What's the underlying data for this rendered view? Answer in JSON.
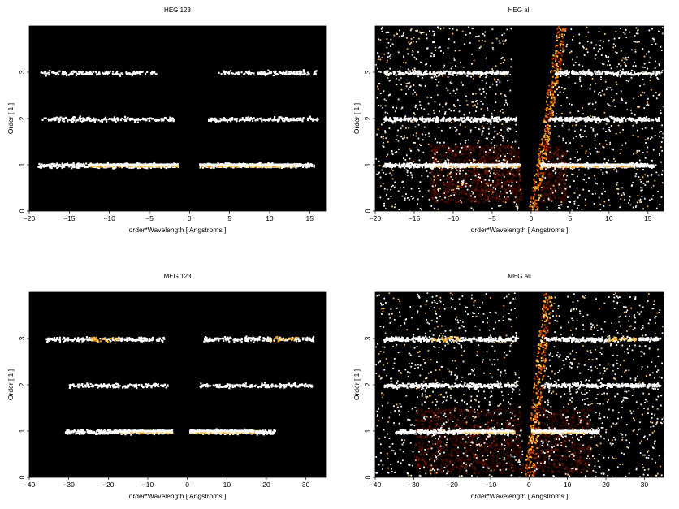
{
  "chart_data": [
    {
      "type": "heatmap",
      "title": "HEG 123",
      "xlabel": "order*Wavelength [ Angstroms ]",
      "ylabel": "Order [ 1 ]",
      "xlim": [
        -20,
        17
      ],
      "ylim": [
        0,
        4
      ],
      "xticks": [
        -20,
        -15,
        -10,
        -5,
        0,
        5,
        10,
        15
      ],
      "yticks": [
        0,
        1,
        2,
        3
      ],
      "background": "#000000",
      "colormap": [
        "#000000",
        "#5a0d00",
        "#b32a00",
        "#ff8000",
        "#ffd060",
        "#ffffff"
      ],
      "bands": [
        {
          "order": 1,
          "x_start": -19,
          "x_end": -1.5,
          "core_start": -12.5,
          "core_end": -1.5,
          "intensity": "high",
          "density": 1.0
        },
        {
          "order": 1,
          "x_start": 1.2,
          "x_end": 15.5,
          "core_start": 1.2,
          "core_end": 13,
          "intensity": "high",
          "density": 1.0
        },
        {
          "order": 2,
          "x_start": -18.5,
          "x_end": -2,
          "intensity": "low",
          "density": 0.5
        },
        {
          "order": 2,
          "x_start": 2.2,
          "x_end": 16,
          "intensity": "low",
          "density": 0.55
        },
        {
          "order": 3,
          "x_start": -19,
          "x_end": -4,
          "intensity": "low",
          "density": 0.4
        },
        {
          "order": 3,
          "x_start": 3.5,
          "x_end": 16,
          "intensity": "low",
          "density": 0.45
        }
      ]
    },
    {
      "type": "heatmap",
      "title": "HEG all",
      "xlabel": "order*Wavelength [ Angstroms ]",
      "ylabel": "Order [ 1 ]",
      "xlim": [
        -20,
        17
      ],
      "ylim": [
        0,
        4
      ],
      "xticks": [
        -20,
        -15,
        -10,
        -5,
        0,
        5,
        10,
        15
      ],
      "yticks": [
        0,
        1,
        2,
        3
      ],
      "background": "#000000",
      "colormap": [
        "#000000",
        "#5a0d00",
        "#b32a00",
        "#ff8000",
        "#ffd060",
        "#ffffff"
      ],
      "bands": [
        {
          "order": 1,
          "x_start": -19,
          "x_end": -1.5,
          "core_start": -13,
          "core_end": -1.5,
          "intensity": "high",
          "density": 1.0
        },
        {
          "order": 1,
          "x_start": 1.2,
          "x_end": 16,
          "core_start": 1.2,
          "core_end": 13,
          "intensity": "high",
          "density": 1.0
        },
        {
          "order": 2,
          "x_start": -19,
          "x_end": -2,
          "intensity": "medium",
          "density": 0.7
        },
        {
          "order": 2,
          "x_start": 2,
          "x_end": 16.5,
          "intensity": "medium",
          "density": 0.7
        },
        {
          "order": 3,
          "x_start": -19,
          "x_end": -3,
          "intensity": "medium",
          "density": 0.6
        },
        {
          "order": 3,
          "x_start": 3,
          "x_end": 16.5,
          "intensity": "medium",
          "density": 0.6
        }
      ],
      "wedge": {
        "x_left_top": -2.5,
        "x_right_top": 4.5,
        "x_left_bottom": -1,
        "x_right_bottom": 0.8
      },
      "diffuse_block": {
        "x_start": -13,
        "x_end": 4.5,
        "y_start": 0.2,
        "y_end": 1.45
      }
    },
    {
      "type": "heatmap",
      "title": "MEG 123",
      "xlabel": "order*Wavelength [ Angstroms ]",
      "ylabel": "Order [ 1 ]",
      "xlim": [
        -40,
        35
      ],
      "ylim": [
        0,
        4
      ],
      "xticks": [
        -40,
        -30,
        -20,
        -10,
        0,
        10,
        20,
        30
      ],
      "yticks": [
        0,
        1,
        2,
        3
      ],
      "background": "#000000",
      "colormap": [
        "#000000",
        "#5a0d00",
        "#b32a00",
        "#ff8000",
        "#ffd060",
        "#ffffff"
      ],
      "bands": [
        {
          "order": 1,
          "x_start": -31,
          "x_end": -4,
          "core_start": -17,
          "core_end": -4,
          "intensity": "high",
          "density": 1.0
        },
        {
          "order": 1,
          "x_start": 0.5,
          "x_end": 22,
          "core_start": 0.5,
          "core_end": 17,
          "intensity": "high",
          "density": 1.0
        },
        {
          "order": 2,
          "x_start": -30,
          "x_end": -5,
          "intensity": "low",
          "density": 0.5
        },
        {
          "order": 2,
          "x_start": 3,
          "x_end": 32,
          "intensity": "low",
          "density": 0.5
        },
        {
          "order": 3,
          "x_start": -36,
          "x_end": -6,
          "intensity": "medium",
          "density": 0.7,
          "hotspot": -21
        },
        {
          "order": 3,
          "x_start": 4,
          "x_end": 32,
          "intensity": "medium",
          "density": 0.7,
          "hotspot": 24
        }
      ]
    },
    {
      "type": "heatmap",
      "title": "MEG all",
      "xlabel": "order*Wavelength [ Angstroms ]",
      "ylabel": "Order [ 1 ]",
      "xlim": [
        -40,
        35
      ],
      "ylim": [
        0,
        4
      ],
      "xticks": [
        -40,
        -30,
        -20,
        -10,
        0,
        10,
        20,
        30
      ],
      "yticks": [
        0,
        1,
        2,
        3
      ],
      "background": "#000000",
      "colormap": [
        "#000000",
        "#5a0d00",
        "#b32a00",
        "#ff8000",
        "#ffd060",
        "#ffffff"
      ],
      "bands": [
        {
          "order": 1,
          "x_start": -35,
          "x_end": -4,
          "core_start": -18,
          "core_end": -4,
          "intensity": "high",
          "density": 1.0
        },
        {
          "order": 1,
          "x_start": 0.5,
          "x_end": 18,
          "core_start": 0.5,
          "core_end": 15,
          "intensity": "high",
          "density": 1.0
        },
        {
          "order": 2,
          "x_start": -38,
          "x_end": -3,
          "intensity": "medium",
          "density": 0.7
        },
        {
          "order": 2,
          "x_start": 3,
          "x_end": 34,
          "intensity": "medium",
          "density": 0.7
        },
        {
          "order": 3,
          "x_start": -38,
          "x_end": -3,
          "intensity": "medium",
          "density": 0.8,
          "hotspot": -22
        },
        {
          "order": 3,
          "x_start": 3,
          "x_end": 34,
          "intensity": "medium",
          "density": 0.8,
          "hotspot": 24
        }
      ],
      "wedge": {
        "x_left_top": -3.5,
        "x_right_top": 6,
        "x_left_bottom": -1.2,
        "x_right_bottom": 1
      },
      "diffuse_block": {
        "x_start": -30,
        "x_end": 16,
        "y_start": 0.1,
        "y_end": 1.5
      }
    }
  ]
}
